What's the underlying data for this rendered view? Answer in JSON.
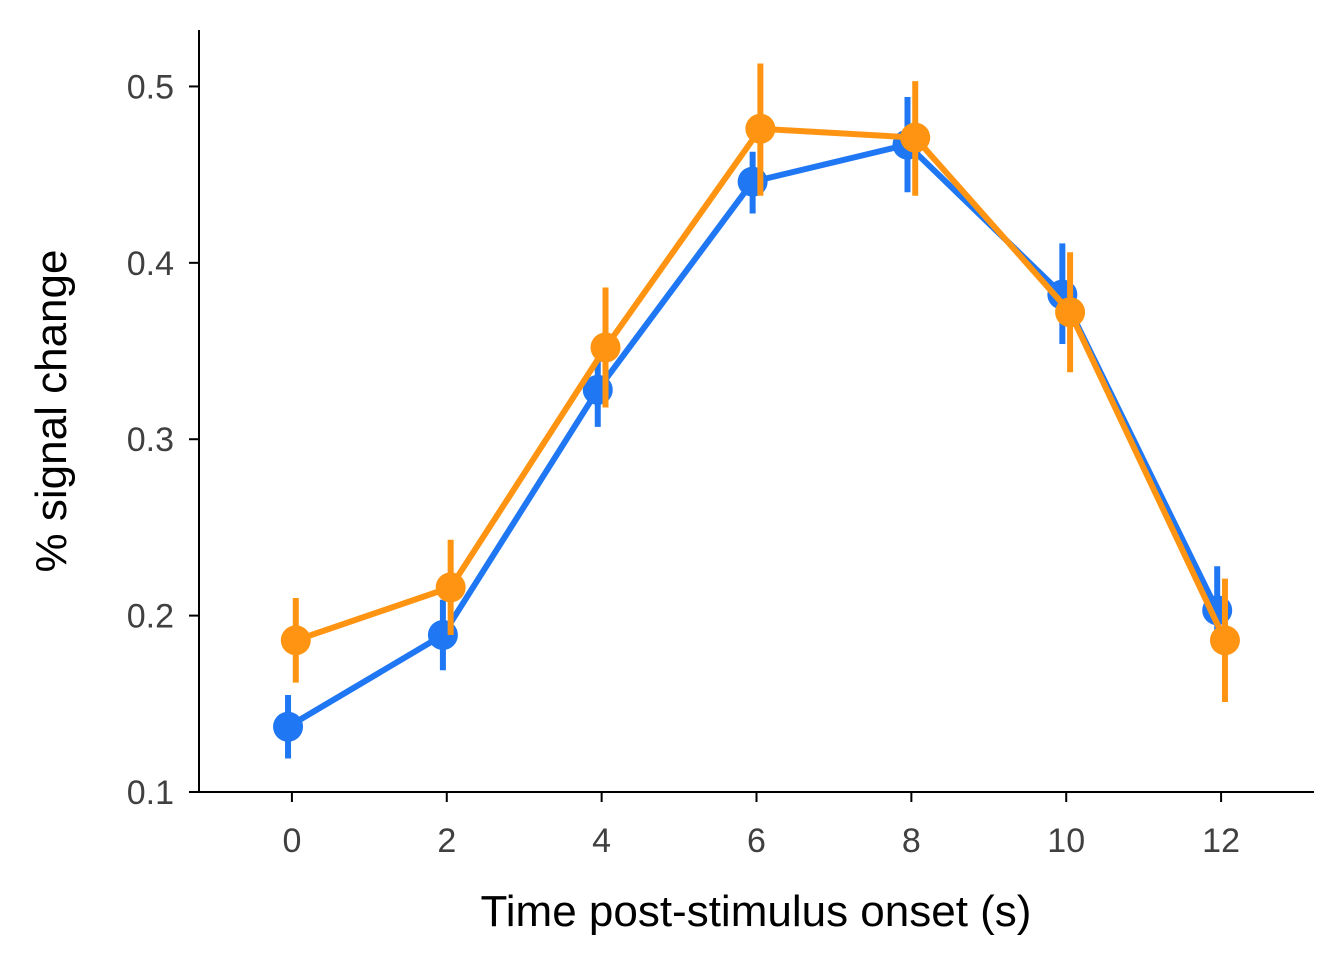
{
  "chart_data": {
    "type": "line",
    "title": "",
    "xlabel": "Time post-stimulus onset (s)",
    "ylabel": "% signal change",
    "x": [
      0,
      2,
      4,
      6,
      8,
      10,
      12
    ],
    "xlim": [
      -1.2,
      13.2
    ],
    "ylim": [
      0.1,
      0.532
    ],
    "xticks": [
      0,
      2,
      4,
      6,
      8,
      10,
      12
    ],
    "yticks": [
      0.1,
      0.2,
      0.3,
      0.4,
      0.5
    ],
    "xtick_labels": [
      "0",
      "2",
      "4",
      "6",
      "8",
      "10",
      "12"
    ],
    "ytick_labels": [
      "0.1",
      "0.2",
      "0.3",
      "0.4",
      "0.5"
    ],
    "grid": false,
    "legend": "none",
    "series": [
      {
        "color": "#1f77f4",
        "x_offset": -0.05,
        "values": [
          0.137,
          0.189,
          0.328,
          0.446,
          0.467,
          0.382,
          0.203
        ],
        "err_low": [
          0.119,
          0.169,
          0.307,
          0.428,
          0.44,
          0.354,
          0.18
        ],
        "err_high": [
          0.155,
          0.209,
          0.347,
          0.463,
          0.494,
          0.411,
          0.228
        ]
      },
      {
        "color": "#ff9412",
        "x_offset": 0.05,
        "values": [
          0.186,
          0.216,
          0.352,
          0.476,
          0.471,
          0.372,
          0.186
        ],
        "err_low": [
          0.162,
          0.189,
          0.318,
          0.438,
          0.438,
          0.338,
          0.151
        ],
        "err_high": [
          0.21,
          0.243,
          0.386,
          0.513,
          0.503,
          0.406,
          0.221
        ]
      }
    ]
  }
}
